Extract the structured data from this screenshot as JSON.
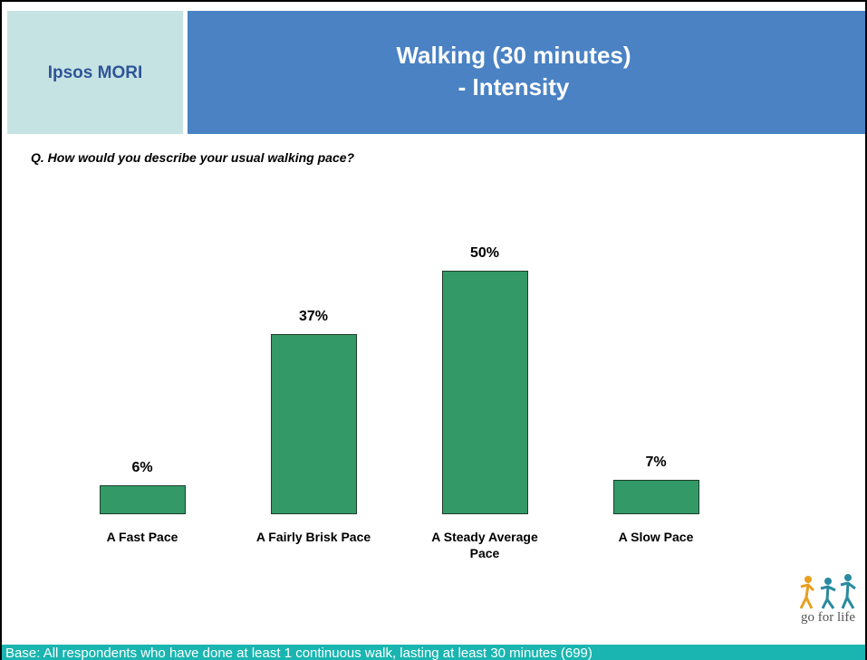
{
  "header": {
    "brand": "Ipsos MORI",
    "title_line1": "Walking (30 minutes)",
    "title_line2": "- Intensity"
  },
  "question": "Q.   How would you describe your usual walking pace?",
  "chart_data": {
    "type": "bar",
    "categories": [
      "A Fast Pace",
      "A Fairly Brisk Pace",
      "A Steady Average Pace",
      "A Slow Pace"
    ],
    "values": [
      6,
      37,
      50,
      7
    ],
    "value_labels": [
      "6%",
      "37%",
      "50%",
      "7%"
    ],
    "color": "#339966"
  },
  "logo": "go for life",
  "footer": "Base: All respondents who have done at least 1 continuous walk, lasting at least 30 minutes (699)"
}
